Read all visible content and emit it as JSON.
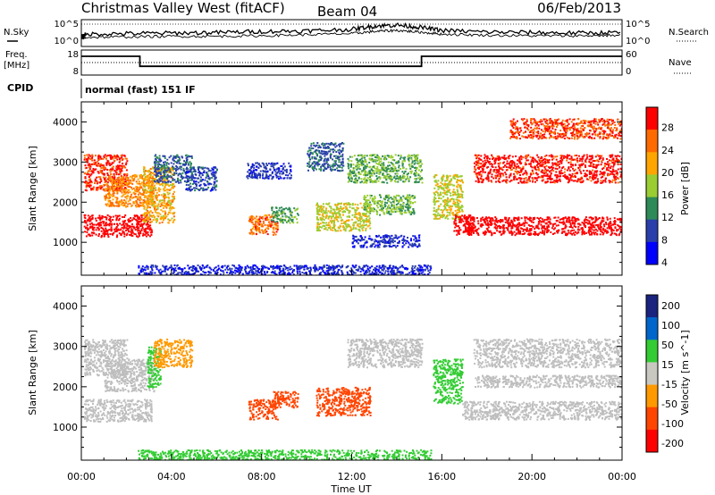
{
  "header": {
    "title": "Christmas Valley West (fitACF)",
    "beam": "Beam 04",
    "date": "06/Feb/2013"
  },
  "noise_panel": {
    "left_label": "N.Sky",
    "right_label": "N.Search",
    "left_ticks": [
      "10^5",
      "10^0"
    ],
    "right_ticks": [
      "10^5",
      "10^0"
    ]
  },
  "freq_panel": {
    "left_label_1": "Freq.",
    "left_label_2": "[MHz]",
    "right_label": "Nave",
    "left_ticks": [
      "18",
      "8"
    ],
    "right_ticks": [
      "60",
      "0"
    ]
  },
  "cpid": {
    "label": "CPID",
    "value": "normal (fast) 151 IF"
  },
  "colors": {
    "power": [
      "#0000ff",
      "#2a3faa",
      "#2e8b57",
      "#9acd32",
      "#ffa500",
      "#ff6a00",
      "#ff0000"
    ],
    "velocity": [
      "#ff0000",
      "#ff4500",
      "#ff9900",
      "#c8c8c0",
      "#33cc33",
      "#0066cc",
      "#1a237e"
    ],
    "ground_scatter": "#bebebe"
  },
  "chart_data": [
    {
      "type": "heatmap",
      "name": "power",
      "xlabel": "",
      "ylabel": "Slant Range [km]",
      "xlim": [
        0,
        24
      ],
      "ylim": [
        180,
        4500
      ],
      "yticks": [
        "1000",
        "2000",
        "3000",
        "4000"
      ],
      "colorbar_label": "Power [dB]",
      "colorbar_ticks": [
        "4",
        "8",
        "12",
        "16",
        "20",
        "24",
        "28"
      ],
      "regions": [
        {
          "t0": 0.1,
          "t1": 3.1,
          "r0": 1150,
          "r1": 1700,
          "v": 30
        },
        {
          "t0": 0.1,
          "t1": 2.0,
          "r0": 2300,
          "r1": 3200,
          "v": 27
        },
        {
          "t0": 1.0,
          "t1": 3.2,
          "r0": 1900,
          "r1": 2700,
          "v": 22
        },
        {
          "t0": 2.7,
          "t1": 4.1,
          "r0": 1500,
          "r1": 2900,
          "v": 20
        },
        {
          "t0": 3.2,
          "t1": 4.9,
          "r0": 2500,
          "r1": 3200,
          "v": 9
        },
        {
          "t0": 4.6,
          "t1": 6.0,
          "r0": 2300,
          "r1": 2900,
          "v": 8
        },
        {
          "t0": 7.4,
          "t1": 8.7,
          "r0": 1200,
          "r1": 1700,
          "v": 24
        },
        {
          "t0": 8.4,
          "t1": 9.6,
          "r0": 1500,
          "r1": 1900,
          "v": 13
        },
        {
          "t0": 7.3,
          "t1": 9.3,
          "r0": 2600,
          "r1": 3000,
          "v": 7
        },
        {
          "t0": 10.0,
          "t1": 11.6,
          "r0": 2800,
          "r1": 3500,
          "v": 9
        },
        {
          "t0": 10.4,
          "t1": 12.8,
          "r0": 1300,
          "r1": 2000,
          "v": 17
        },
        {
          "t0": 11.8,
          "t1": 15.1,
          "r0": 2500,
          "r1": 3200,
          "v": 14
        },
        {
          "t0": 12.5,
          "t1": 14.8,
          "r0": 1700,
          "r1": 2200,
          "v": 15
        },
        {
          "t0": 12.0,
          "t1": 15.0,
          "r0": 900,
          "r1": 1200,
          "v": 7
        },
        {
          "t0": 15.6,
          "t1": 16.9,
          "r0": 1600,
          "r1": 2700,
          "v": 17
        },
        {
          "t0": 16.5,
          "t1": 17.4,
          "r0": 1200,
          "r1": 1700,
          "v": 29
        },
        {
          "t0": 17.0,
          "t1": 24.0,
          "r0": 1200,
          "r1": 1650,
          "v": 30
        },
        {
          "t0": 17.4,
          "t1": 24.0,
          "r0": 2500,
          "r1": 3200,
          "v": 28
        },
        {
          "t0": 19.0,
          "t1": 24.0,
          "r0": 3600,
          "r1": 4100,
          "v": 26
        },
        {
          "t0": 2.5,
          "t1": 15.5,
          "r0": 180,
          "r1": 450,
          "v": 6
        }
      ]
    },
    {
      "type": "heatmap",
      "name": "velocity",
      "xlabel": "Time UT",
      "ylabel": "Slant Range [km]",
      "xlim": [
        0,
        24
      ],
      "ylim": [
        180,
        4500
      ],
      "xticks": [
        "00:00",
        "04:00",
        "08:00",
        "12:00",
        "16:00",
        "20:00",
        "00:00"
      ],
      "yticks": [
        "1000",
        "2000",
        "3000",
        "4000"
      ],
      "colorbar_label": "Velocity [m s^-1]",
      "colorbar_ticks": [
        "200",
        "100",
        "50",
        "15",
        "-15",
        "-50",
        "-100",
        "-200"
      ],
      "regions": [
        {
          "t0": 0.1,
          "t1": 3.1,
          "r0": 1150,
          "r1": 1700,
          "v": 0
        },
        {
          "t0": 0.1,
          "t1": 2.0,
          "r0": 2300,
          "r1": 3200,
          "v": 0
        },
        {
          "t0": 1.0,
          "t1": 3.2,
          "r0": 1900,
          "r1": 2700,
          "v": 0
        },
        {
          "t0": 2.9,
          "t1": 3.5,
          "r0": 2000,
          "r1": 3000,
          "v": 30
        },
        {
          "t0": 3.2,
          "t1": 4.9,
          "r0": 2500,
          "r1": 3200,
          "v": -40
        },
        {
          "t0": 7.4,
          "t1": 8.7,
          "r0": 1200,
          "r1": 1700,
          "v": -60
        },
        {
          "t0": 8.4,
          "t1": 9.6,
          "r0": 1500,
          "r1": 1900,
          "v": -60
        },
        {
          "t0": 10.4,
          "t1": 12.8,
          "r0": 1300,
          "r1": 2000,
          "v": -60
        },
        {
          "t0": 11.8,
          "t1": 15.1,
          "r0": 2500,
          "r1": 3200,
          "v": 0
        },
        {
          "t0": 15.6,
          "t1": 16.9,
          "r0": 1600,
          "r1": 2700,
          "v": 40
        },
        {
          "t0": 16.9,
          "t1": 24.0,
          "r0": 1200,
          "r1": 1650,
          "v": 0
        },
        {
          "t0": 17.4,
          "t1": 24.0,
          "r0": 2500,
          "r1": 3200,
          "v": 0
        },
        {
          "t0": 17.4,
          "t1": 24.0,
          "r0": 2000,
          "r1": 2300,
          "v": 0
        },
        {
          "t0": 2.5,
          "t1": 15.5,
          "r0": 180,
          "r1": 450,
          "v": 35
        }
      ]
    },
    {
      "type": "line",
      "name": "noise",
      "ylim": [
        0,
        5
      ],
      "series": [
        {
          "x": [
            0,
            0.2,
            2,
            4,
            6,
            8,
            10,
            12,
            13,
            14,
            15,
            16,
            18,
            20,
            22,
            24
          ],
          "y": [
            1.8,
            2.3,
            2.4,
            2.5,
            2.6,
            2.8,
            2.9,
            3.2,
            3.8,
            4.0,
            3.6,
            3.0,
            2.7,
            2.6,
            2.5,
            2.6
          ]
        },
        {
          "x": [
            0,
            0.2,
            2,
            4,
            6,
            8,
            10,
            12,
            13,
            14,
            15,
            16,
            18,
            20,
            22,
            24
          ],
          "y": [
            1.4,
            1.7,
            1.8,
            1.9,
            1.9,
            2.0,
            2.2,
            2.4,
            2.8,
            3.0,
            2.7,
            2.3,
            2.1,
            2.0,
            2.0,
            2.1
          ]
        }
      ]
    },
    {
      "type": "line",
      "name": "frequency",
      "ylim": [
        8,
        18
      ],
      "series": [
        {
          "x": [
            0,
            2.6,
            2.6,
            15.1,
            15.1,
            24
          ],
          "y": [
            15.5,
            15.5,
            11.5,
            11.5,
            15.5,
            15.5
          ]
        },
        {
          "x": [
            0,
            24
          ],
          "y": [
            13,
            13
          ]
        }
      ]
    }
  ]
}
